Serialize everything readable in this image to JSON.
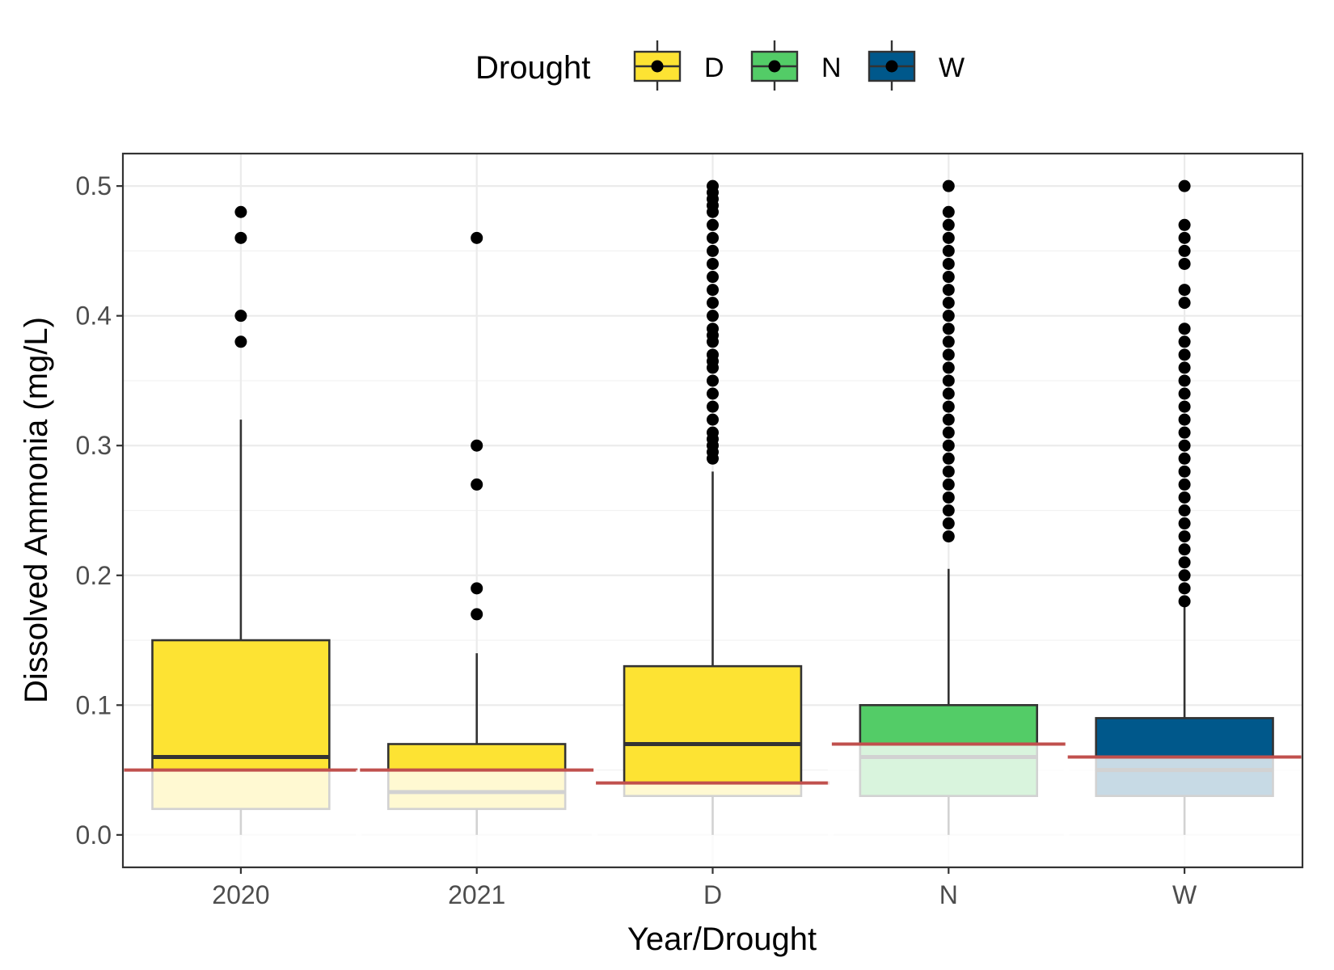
{
  "chart_data": {
    "type": "box",
    "xlabel": "Year/Drought",
    "ylabel": "Dissolved Ammonia (mg/L)",
    "ylim": [
      -0.025,
      0.525
    ],
    "y_ticks": [
      0.0,
      0.1,
      0.2,
      0.3,
      0.4,
      0.5
    ],
    "y_tick_labels": [
      "0.0",
      "0.1",
      "0.2",
      "0.3",
      "0.4",
      "0.5"
    ],
    "grid": true,
    "legend": {
      "title": "Drought",
      "position": "top",
      "items": [
        {
          "label": "D",
          "color": "#FDE333"
        },
        {
          "label": "N",
          "color": "#53CC67"
        },
        {
          "label": "W",
          "color": "#00588B"
        }
      ]
    },
    "reference_line_color": "#C0504D",
    "categories": [
      "2020",
      "2021",
      "D",
      "N",
      "W"
    ],
    "boxes": [
      {
        "category": "2020",
        "group": "D",
        "color": "#FDE333",
        "low_whisker": 0.0,
        "q1": 0.02,
        "median": 0.06,
        "q3": 0.15,
        "high_whisker": 0.32,
        "reference": 0.05,
        "outliers": [
          0.38,
          0.4,
          0.46,
          0.48
        ]
      },
      {
        "category": "2021",
        "group": "D",
        "color": "#FDE333",
        "low_whisker": 0.0,
        "q1": 0.02,
        "median": 0.033,
        "q3": 0.07,
        "high_whisker": 0.14,
        "reference": 0.05,
        "outliers": [
          0.17,
          0.19,
          0.27,
          0.3,
          0.46
        ]
      },
      {
        "category": "D",
        "group": "D",
        "color": "#FDE333",
        "low_whisker": 0.0,
        "q1": 0.03,
        "median": 0.07,
        "q3": 0.13,
        "high_whisker": 0.28,
        "reference": 0.04,
        "outliers": [
          0.29,
          0.295,
          0.3,
          0.305,
          0.31,
          0.32,
          0.33,
          0.34,
          0.35,
          0.36,
          0.365,
          0.37,
          0.38,
          0.385,
          0.39,
          0.4,
          0.41,
          0.42,
          0.43,
          0.44,
          0.45,
          0.46,
          0.47,
          0.48,
          0.485,
          0.49,
          0.495,
          0.5
        ]
      },
      {
        "category": "N",
        "group": "N",
        "color": "#53CC67",
        "low_whisker": 0.0,
        "q1": 0.03,
        "median": 0.06,
        "q3": 0.1,
        "high_whisker": 0.205,
        "reference": 0.07,
        "outliers": [
          0.23,
          0.24,
          0.25,
          0.26,
          0.27,
          0.28,
          0.29,
          0.3,
          0.31,
          0.32,
          0.33,
          0.34,
          0.35,
          0.36,
          0.37,
          0.38,
          0.39,
          0.4,
          0.41,
          0.42,
          0.43,
          0.44,
          0.45,
          0.46,
          0.47,
          0.48,
          0.5
        ]
      },
      {
        "category": "W",
        "group": "W",
        "color": "#00588B",
        "low_whisker": 0.0,
        "q1": 0.03,
        "median": 0.05,
        "q3": 0.09,
        "high_whisker": 0.18,
        "reference": 0.06,
        "outliers": [
          0.18,
          0.19,
          0.2,
          0.21,
          0.22,
          0.23,
          0.24,
          0.25,
          0.26,
          0.27,
          0.28,
          0.29,
          0.3,
          0.31,
          0.32,
          0.33,
          0.34,
          0.35,
          0.36,
          0.37,
          0.38,
          0.39,
          0.41,
          0.42,
          0.44,
          0.45,
          0.46,
          0.47,
          0.5
        ]
      }
    ]
  }
}
